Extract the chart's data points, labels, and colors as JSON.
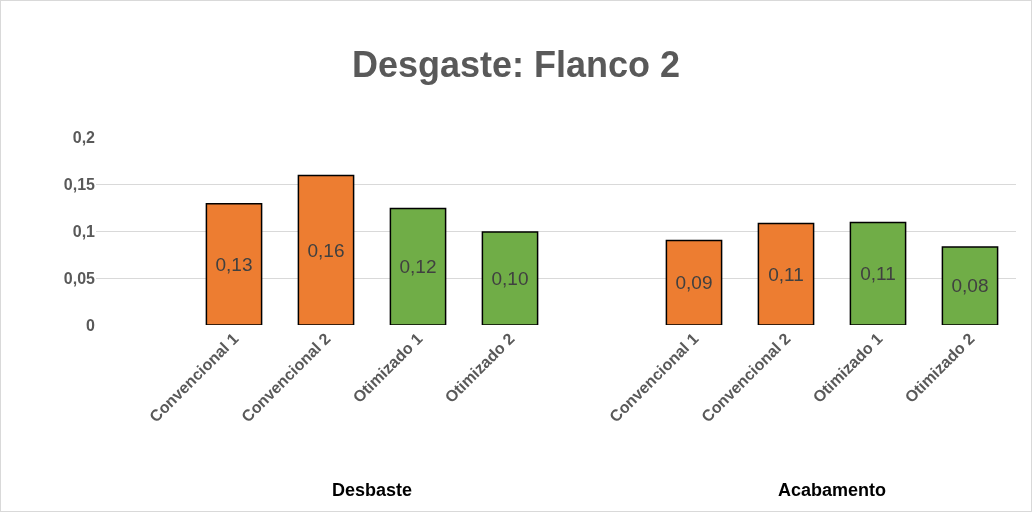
{
  "chart_data": {
    "type": "bar",
    "title": "Desgaste: Flanco 2",
    "categories": [
      "Convencional 1",
      "Convencional 2",
      "Otimizado 1",
      "Otimizado 2",
      "Convencional 1",
      "Convencional 2",
      "Otimizado 1",
      "Otimizado 2"
    ],
    "values": [
      0.129,
      0.159,
      0.124,
      0.099,
      0.09,
      0.108,
      0.109,
      0.083
    ],
    "value_labels": [
      "0,13",
      "0,16",
      "0,12",
      "0,10",
      "0,09",
      "0,11",
      "0,11",
      "0,08"
    ],
    "colors": [
      "#ed7d31",
      "#ed7d31",
      "#70ad47",
      "#70ad47",
      "#ed7d31",
      "#ed7d31",
      "#70ad47",
      "#70ad47"
    ],
    "annotations": [
      "Desbaste",
      "Acabamento"
    ],
    "ylim": [
      0,
      0.2
    ],
    "yticks": [
      0,
      {
        "value": 0.05,
        "label": "0,05"
      },
      {
        "value": 0.1,
        "label": "0,1"
      },
      {
        "value": 0.15,
        "label": "0,15"
      },
      {
        "value": 0.2,
        "label": "0,2"
      }
    ],
    "grid": "y"
  }
}
